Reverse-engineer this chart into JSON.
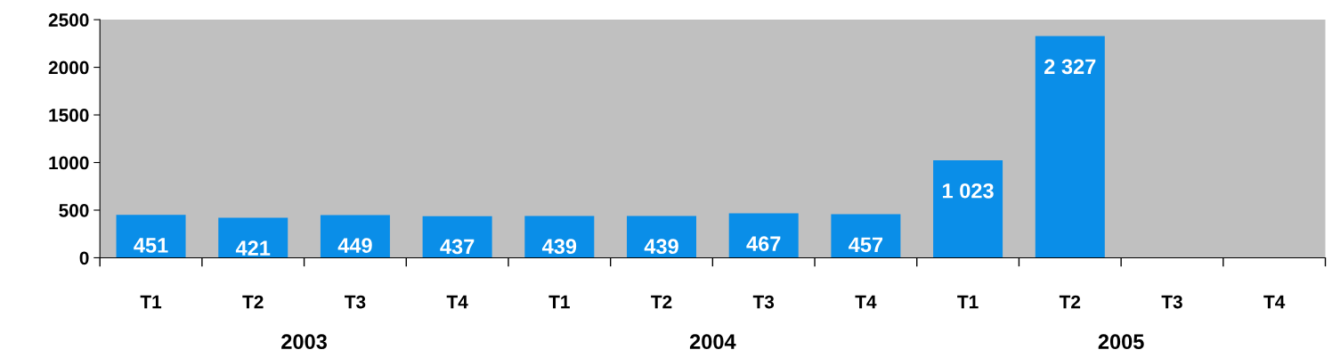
{
  "chart_data": {
    "type": "bar",
    "categories": [
      "T1",
      "T2",
      "T3",
      "T4",
      "T1",
      "T2",
      "T3",
      "T4",
      "T1",
      "T2",
      "T3",
      "T4"
    ],
    "values": [
      451,
      421,
      449,
      437,
      439,
      439,
      467,
      457,
      1023,
      2327,
      null,
      null
    ],
    "value_labels": [
      "451",
      "421",
      "449",
      "437",
      "439",
      "439",
      "467",
      "457",
      "1 023",
      "2 327",
      null,
      null
    ],
    "color": "#0a8ee8",
    "annotations": [
      "2003",
      "2004",
      "2005"
    ],
    "ylim": [
      0,
      2500
    ],
    "yticks": [
      0,
      500,
      1000,
      1500,
      2000,
      2500
    ],
    "grid": false,
    "legend": false
  }
}
